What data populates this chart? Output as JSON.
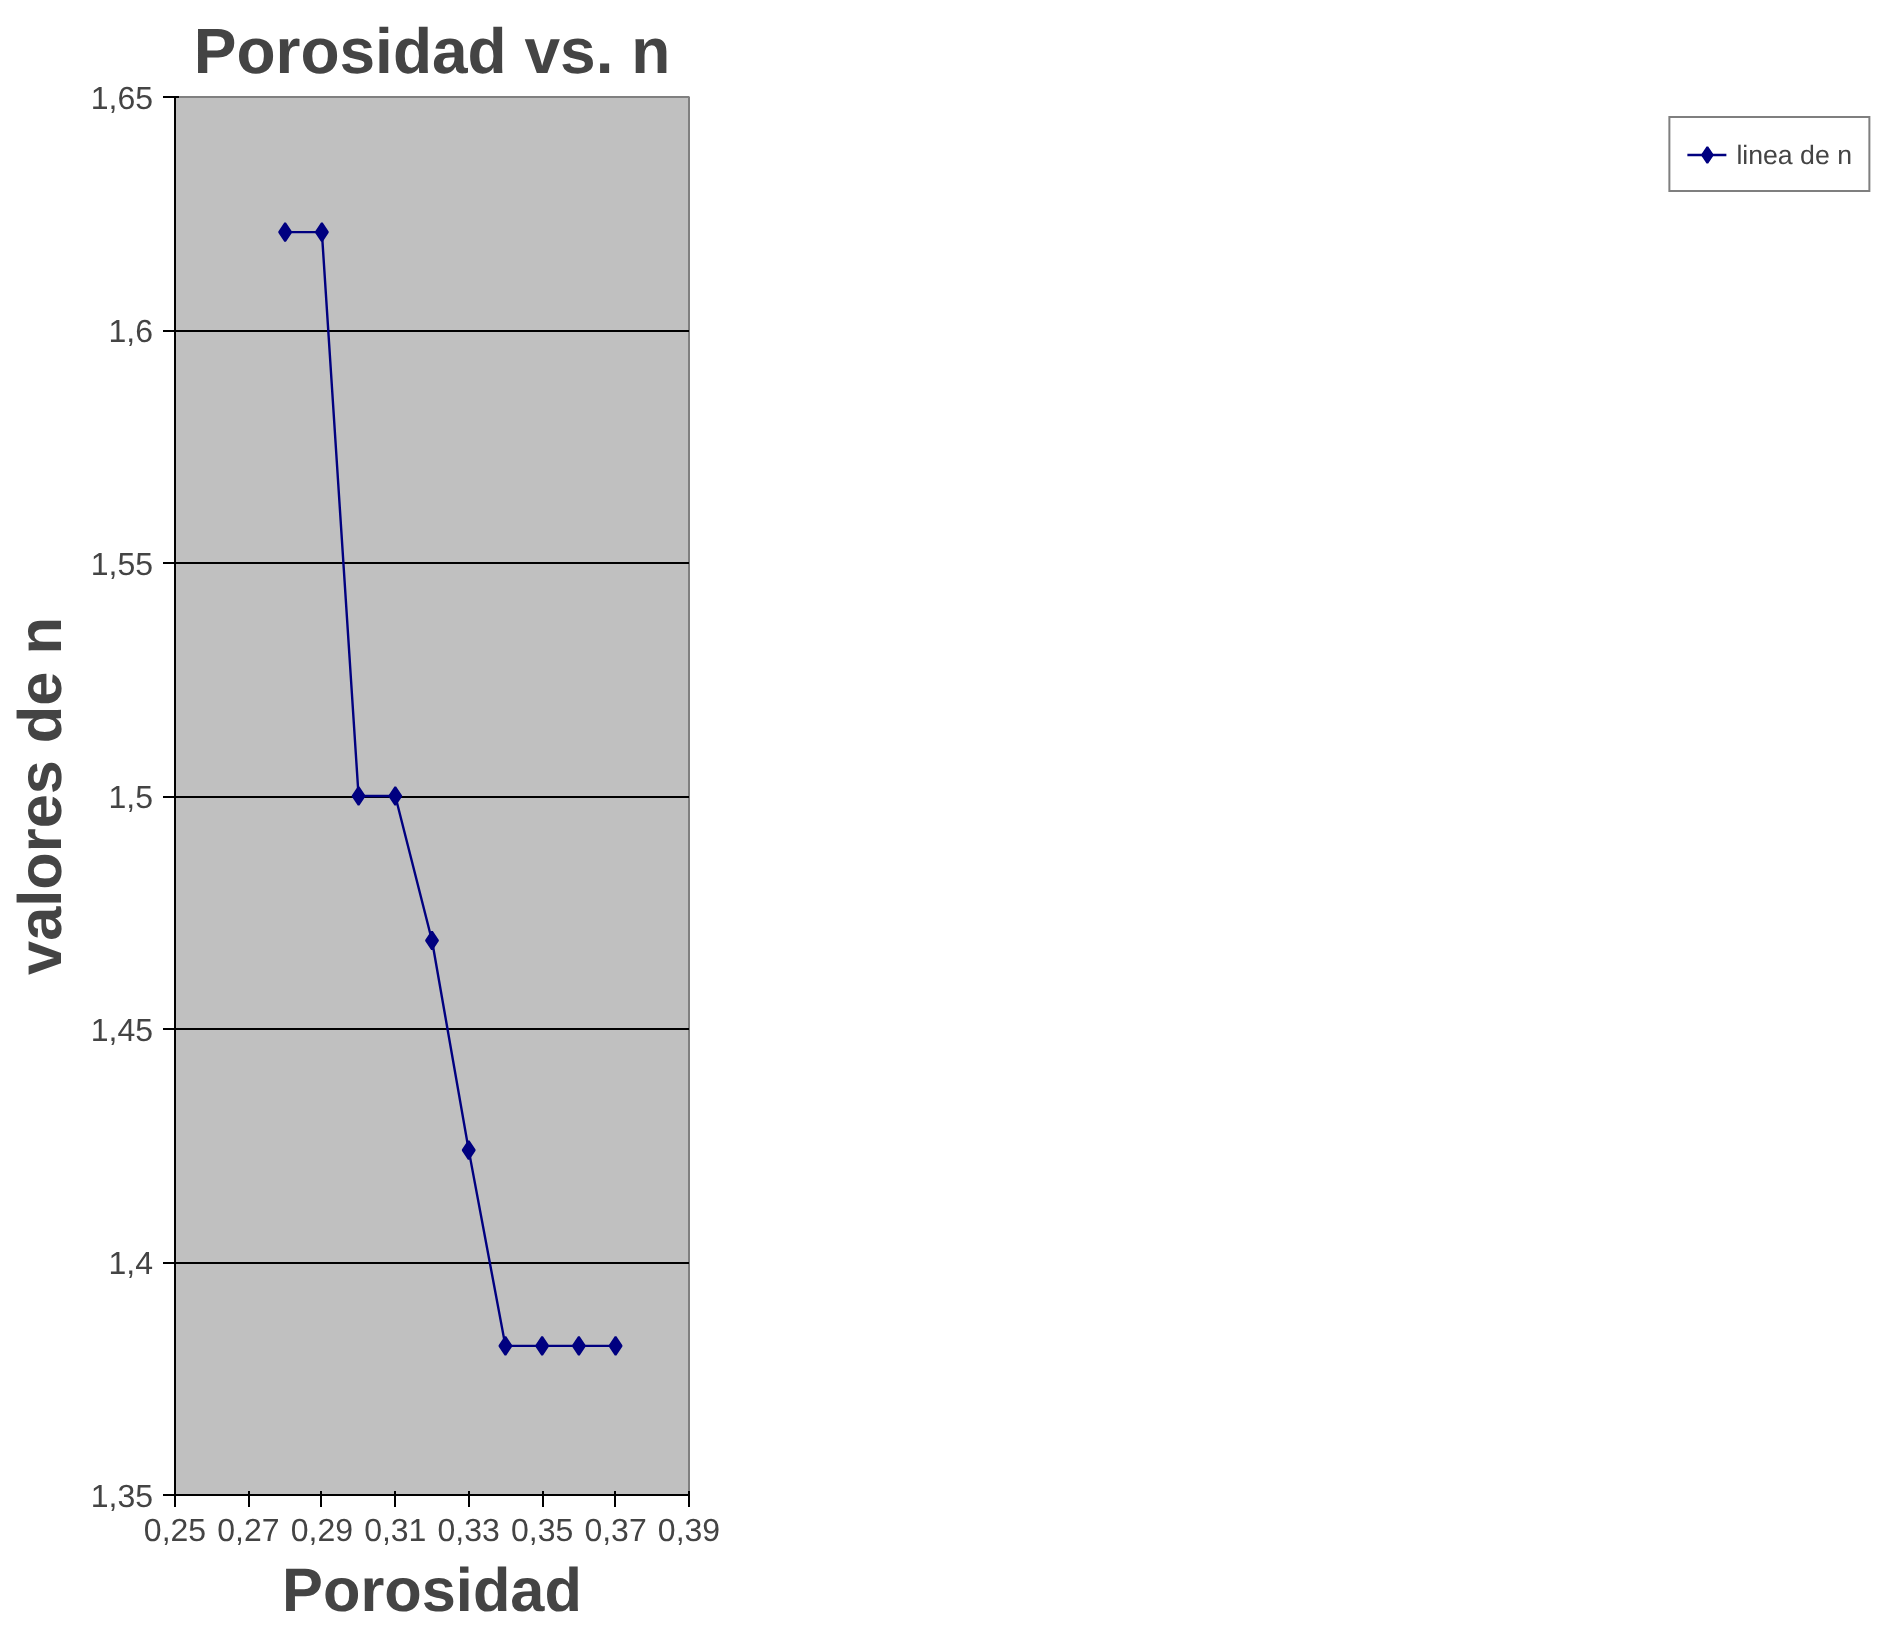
{
  "chart_data": {
    "type": "line",
    "title": "Porosidad vs. n",
    "xlabel": "Porosidad",
    "ylabel": "valores de n",
    "x": [
      0.28,
      0.29,
      0.3,
      0.31,
      0.32,
      0.33,
      0.34,
      0.35,
      0.36,
      0.37
    ],
    "series": [
      {
        "name": "linea de n",
        "color": "#000080",
        "values": [
          1.621,
          1.621,
          1.5,
          1.5,
          1.469,
          1.424,
          1.382,
          1.382,
          1.382,
          1.382
        ]
      }
    ],
    "xlim": [
      0.25,
      0.39
    ],
    "xticks": [
      {
        "value": 0.25,
        "label": "0,25"
      },
      {
        "value": 0.27,
        "label": "0,27"
      },
      {
        "value": 0.29,
        "label": "0,29"
      },
      {
        "value": 0.31,
        "label": "0,31"
      },
      {
        "value": 0.33,
        "label": "0,33"
      },
      {
        "value": 0.35,
        "label": "0,35"
      },
      {
        "value": 0.37,
        "label": "0,37"
      },
      {
        "value": 0.39,
        "label": "0,39"
      }
    ],
    "ylim": [
      1.35,
      1.65
    ],
    "yticks": [
      {
        "value": 1.35,
        "label": "1,35"
      },
      {
        "value": 1.4,
        "label": "1,4"
      },
      {
        "value": 1.45,
        "label": "1,45"
      },
      {
        "value": 1.5,
        "label": "1,5"
      },
      {
        "value": 1.55,
        "label": "1,55"
      },
      {
        "value": 1.6,
        "label": "1,6"
      },
      {
        "value": 1.65,
        "label": "1,65"
      }
    ],
    "grid": "y",
    "legend": "right",
    "marker": "diamond",
    "line_style": "solid"
  }
}
